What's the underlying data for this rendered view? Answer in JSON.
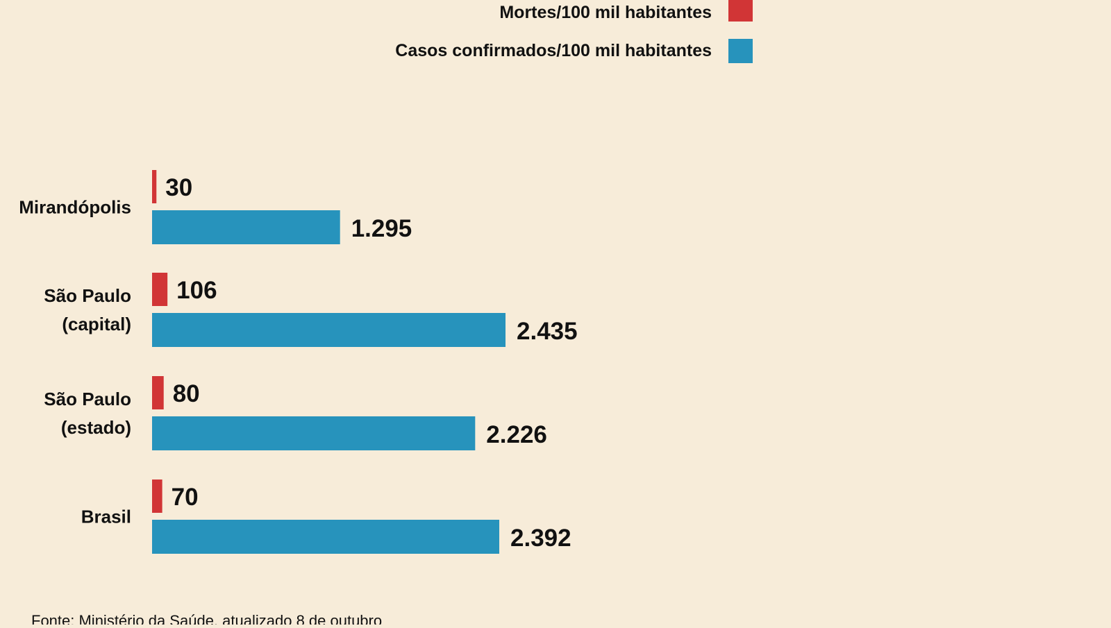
{
  "chart_data": {
    "type": "bar",
    "orientation": "horizontal",
    "legend_position": "top",
    "grid": false,
    "categories": [
      [
        "Mirandópolis"
      ],
      [
        "São Paulo",
        "(capital)"
      ],
      [
        "São Paulo",
        "(estado)"
      ],
      [
        "Brasil"
      ]
    ],
    "series": [
      {
        "name": "Mortes/100 mil habitantes",
        "color": "#d13536",
        "values": [
          30,
          106,
          80,
          70
        ],
        "labels": [
          "30",
          "106",
          "80",
          "70"
        ]
      },
      {
        "name": "Casos confirmados/100 mil habitantes",
        "color": "#2793bc",
        "values": [
          1295,
          2435,
          2226,
          2392
        ],
        "labels": [
          "1.295",
          "2.435",
          "2.226",
          "2.392"
        ]
      }
    ],
    "xlim": [
      0,
      2435
    ]
  },
  "source": "Fonte: Ministério da Saúde, atualizado 8 de outubro"
}
